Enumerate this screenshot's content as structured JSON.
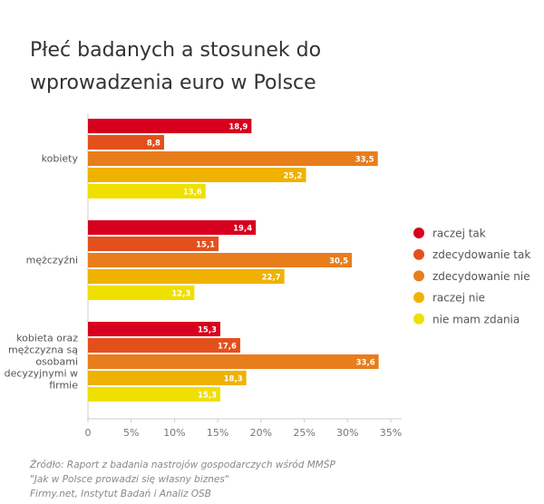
{
  "chart_data": {
    "type": "hbar",
    "title": "Płeć badanych a stosunek do wprowadzenia euro w Polsce",
    "categories": [
      "kobiety",
      "mężczyźni",
      "kobieta oraz mężczyzna są osobami decyzyjnymi w firmie"
    ],
    "series": [
      {
        "name": "raczej tak",
        "color": "#d7001e",
        "values": [
          18.9,
          19.4,
          15.3
        ],
        "value_labels": [
          "18,9",
          "19,4",
          "15,3"
        ]
      },
      {
        "name": "zdecydowanie tak",
        "color": "#e4501c",
        "values": [
          8.8,
          15.1,
          17.6
        ],
        "value_labels": [
          "8,8",
          "15,1",
          "17,6"
        ]
      },
      {
        "name": "zdecydowanie nie",
        "color": "#e87d1c",
        "values": [
          33.5,
          30.5,
          33.6
        ],
        "value_labels": [
          "33,5",
          "30,5",
          "33,6"
        ]
      },
      {
        "name": "raczej nie",
        "color": "#efb200",
        "values": [
          25.2,
          22.7,
          18.3
        ],
        "value_labels": [
          "25,2",
          "22,7",
          "18,3"
        ]
      },
      {
        "name": "nie mam zdania",
        "color": "#efe000",
        "values": [
          13.6,
          12.3,
          15.3
        ],
        "value_labels": [
          "13,6",
          "12,3",
          "15,3"
        ]
      }
    ],
    "xlim": [
      0,
      35
    ],
    "xticks": [
      0,
      {
        "value": 5,
        "label": "5%"
      },
      {
        "value": 10,
        "label": "10%"
      },
      {
        "value": 15,
        "label": "15%"
      },
      {
        "value": 20,
        "label": "20%"
      },
      {
        "value": 25,
        "label": "25%"
      },
      {
        "value": 30,
        "label": "30%"
      },
      {
        "value": 35,
        "label": "35%"
      }
    ],
    "grid": false,
    "legend": "right",
    "source": [
      "Źródło: Raport z badania nastrojów gospodarczych wśród MMŚP",
      "\"Jak w Polsce prowadzi się własny biznes\"",
      "Firmy.net, Instytut Badań i Analiz OSB"
    ]
  }
}
